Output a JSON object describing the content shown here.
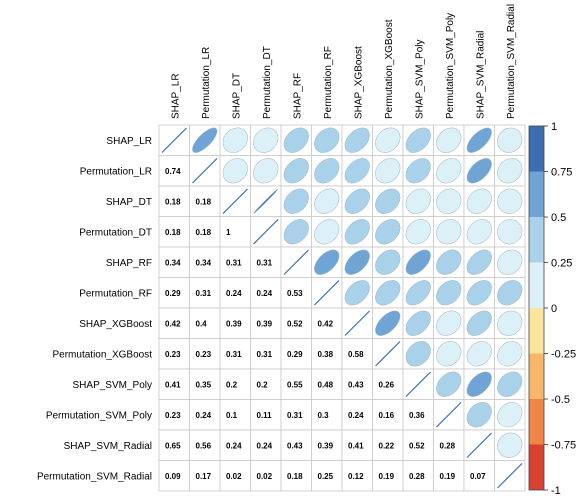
{
  "chart_data": {
    "type": "heatmap",
    "style": "corrplot-mixed",
    "upper_method": "ellipse",
    "lower_method": "number",
    "diagonal": "line",
    "variables": [
      "SHAP_LR",
      "Permutation_LR",
      "SHAP_DT",
      "Permutation_DT",
      "SHAP_RF",
      "Permutation_RF",
      "SHAP_XGBoost",
      "Permutation_XGBoost",
      "SHAP_SVM_Poly",
      "Permutation_SVM_Poly",
      "SHAP_SVM_Radial",
      "Permutation_SVM_Radial"
    ],
    "matrix": [
      [
        1,
        0.74,
        0.18,
        0.18,
        0.34,
        0.29,
        0.42,
        0.23,
        0.41,
        0.23,
        0.65,
        0.09
      ],
      [
        0.74,
        1,
        0.18,
        0.18,
        0.34,
        0.31,
        0.4,
        0.23,
        0.35,
        0.24,
        0.56,
        0.17
      ],
      [
        0.18,
        0.18,
        1,
        1,
        0.31,
        0.24,
        0.39,
        0.31,
        0.2,
        0.1,
        0.24,
        0.02
      ],
      [
        0.18,
        0.18,
        1,
        1,
        0.31,
        0.24,
        0.39,
        0.31,
        0.2,
        0.11,
        0.24,
        0.02
      ],
      [
        0.34,
        0.34,
        0.31,
        0.31,
        1,
        0.53,
        0.52,
        0.29,
        0.55,
        0.31,
        0.43,
        0.18
      ],
      [
        0.29,
        0.31,
        0.24,
        0.24,
        0.53,
        1,
        0.42,
        0.38,
        0.48,
        0.3,
        0.39,
        0.25
      ],
      [
        0.42,
        0.4,
        0.39,
        0.39,
        0.52,
        0.42,
        1,
        0.58,
        0.43,
        0.24,
        0.41,
        0.12
      ],
      [
        0.23,
        0.23,
        0.31,
        0.31,
        0.29,
        0.38,
        0.58,
        1,
        0.26,
        0.16,
        0.22,
        0.19
      ],
      [
        0.41,
        0.35,
        0.2,
        0.2,
        0.55,
        0.48,
        0.43,
        0.26,
        1,
        0.36,
        0.52,
        0.28
      ],
      [
        0.23,
        0.24,
        0.1,
        0.11,
        0.31,
        0.3,
        0.24,
        0.16,
        0.36,
        1,
        0.28,
        0.19
      ],
      [
        0.65,
        0.56,
        0.24,
        0.24,
        0.43,
        0.39,
        0.41,
        0.22,
        0.52,
        0.28,
        1,
        0.07
      ],
      [
        0.09,
        0.17,
        0.02,
        0.02,
        0.18,
        0.25,
        0.12,
        0.19,
        0.28,
        0.19,
        0.07,
        1
      ]
    ],
    "color_scale": {
      "range": [
        -1,
        1
      ],
      "ticks": [
        "1",
        "0.75",
        "0.5",
        "0.25",
        "0",
        "-0.25",
        "-0.5",
        "-0.75",
        "-1"
      ],
      "bands": [
        {
          "from": 0.75,
          "to": 1,
          "color": "#3e6eb0"
        },
        {
          "from": 0.5,
          "to": 0.75,
          "color": "#6fa4d4"
        },
        {
          "from": 0.25,
          "to": 0.5,
          "color": "#a9d2ea"
        },
        {
          "from": 0,
          "to": 0.25,
          "color": "#dcf0f8"
        },
        {
          "from": -0.25,
          "to": 0,
          "color": "#fbe49c"
        },
        {
          "from": -0.5,
          "to": -0.25,
          "color": "#f6b76a"
        },
        {
          "from": -0.75,
          "to": -0.5,
          "color": "#ef8646"
        },
        {
          "from": -1,
          "to": -0.75,
          "color": "#d7412d"
        }
      ],
      "legend_position": "right"
    },
    "grid": true
  }
}
